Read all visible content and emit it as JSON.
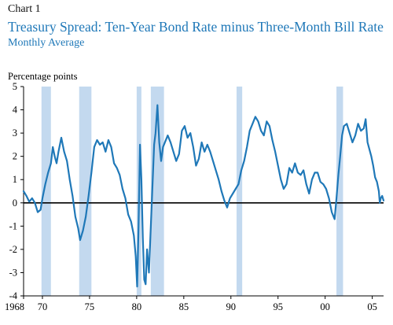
{
  "header": {
    "chart_label": "Chart 1",
    "title": "Treasury Spread: Ten-Year Bond Rate minus Three-Month Bill Rate",
    "subtitle": "Monthly Average"
  },
  "colors": {
    "line": "#1f78b8",
    "recession": "#c3d9ef",
    "title": "#1f78b8"
  },
  "chart_data": {
    "type": "line",
    "title": "Treasury Spread: Ten-Year Bond Rate minus Three-Month Bill Rate",
    "subtitle": "Monthly Average",
    "ylabel": "Percentage points",
    "xlabel": "",
    "xlim": [
      1968.0,
      2006.2
    ],
    "ylim": [
      -4,
      5
    ],
    "y_ticks": [
      5,
      4,
      3,
      2,
      1,
      0,
      -1,
      -2,
      -3,
      -4
    ],
    "x_ticks": [
      {
        "value": 1968,
        "label": "1968"
      },
      {
        "value": 1970,
        "label": "70"
      },
      {
        "value": 1975,
        "label": "75"
      },
      {
        "value": 1980,
        "label": "80"
      },
      {
        "value": 1985,
        "label": "85"
      },
      {
        "value": 1990,
        "label": "90"
      },
      {
        "value": 1995,
        "label": "95"
      },
      {
        "value": 2000,
        "label": "00"
      },
      {
        "value": 2005,
        "label": "05"
      }
    ],
    "zero_line": 0,
    "recessions": [
      [
        1969.9,
        1970.9
      ],
      [
        1973.9,
        1975.2
      ],
      [
        1980.0,
        1980.5
      ],
      [
        1981.5,
        1982.9
      ],
      [
        1990.6,
        1991.2
      ],
      [
        2001.2,
        2001.9
      ]
    ],
    "series": [
      {
        "values": [
          [
            1968.0,
            0.5
          ],
          [
            1968.3,
            0.3
          ],
          [
            1968.6,
            0.05
          ],
          [
            1968.9,
            0.2
          ],
          [
            1969.2,
            0.0
          ],
          [
            1969.5,
            -0.4
          ],
          [
            1969.8,
            -0.3
          ],
          [
            1970.0,
            0.2
          ],
          [
            1970.3,
            0.8
          ],
          [
            1970.6,
            1.3
          ],
          [
            1970.9,
            1.7
          ],
          [
            1971.1,
            2.4
          ],
          [
            1971.3,
            2.0
          ],
          [
            1971.5,
            1.7
          ],
          [
            1971.7,
            2.2
          ],
          [
            1972.0,
            2.8
          ],
          [
            1972.3,
            2.2
          ],
          [
            1972.6,
            1.8
          ],
          [
            1972.9,
            1.0
          ],
          [
            1973.2,
            0.3
          ],
          [
            1973.5,
            -0.6
          ],
          [
            1973.8,
            -1.1
          ],
          [
            1974.0,
            -1.6
          ],
          [
            1974.3,
            -1.2
          ],
          [
            1974.6,
            -0.6
          ],
          [
            1974.9,
            0.3
          ],
          [
            1975.2,
            1.3
          ],
          [
            1975.5,
            2.4
          ],
          [
            1975.8,
            2.7
          ],
          [
            1976.1,
            2.5
          ],
          [
            1976.4,
            2.6
          ],
          [
            1976.7,
            2.2
          ],
          [
            1977.0,
            2.7
          ],
          [
            1977.3,
            2.4
          ],
          [
            1977.6,
            1.7
          ],
          [
            1977.9,
            1.5
          ],
          [
            1978.2,
            1.2
          ],
          [
            1978.5,
            0.6
          ],
          [
            1978.8,
            0.2
          ],
          [
            1979.1,
            -0.5
          ],
          [
            1979.4,
            -0.8
          ],
          [
            1979.7,
            -1.4
          ],
          [
            1979.9,
            -2.3
          ],
          [
            1980.05,
            -3.6
          ],
          [
            1980.2,
            -1.0
          ],
          [
            1980.35,
            2.5
          ],
          [
            1980.5,
            1.0
          ],
          [
            1980.65,
            -1.5
          ],
          [
            1980.8,
            -3.3
          ],
          [
            1980.95,
            -3.5
          ],
          [
            1981.1,
            -2.0
          ],
          [
            1981.3,
            -3.0
          ],
          [
            1981.5,
            -1.0
          ],
          [
            1981.7,
            1.0
          ],
          [
            1981.85,
            2.5
          ],
          [
            1982.0,
            3.0
          ],
          [
            1982.2,
            4.2
          ],
          [
            1982.4,
            2.6
          ],
          [
            1982.6,
            1.8
          ],
          [
            1982.8,
            2.4
          ],
          [
            1983.0,
            2.6
          ],
          [
            1983.3,
            2.9
          ],
          [
            1983.6,
            2.6
          ],
          [
            1983.9,
            2.2
          ],
          [
            1984.2,
            1.8
          ],
          [
            1984.5,
            2.1
          ],
          [
            1984.8,
            3.1
          ],
          [
            1985.1,
            3.3
          ],
          [
            1985.4,
            2.8
          ],
          [
            1985.7,
            3.0
          ],
          [
            1986.0,
            2.4
          ],
          [
            1986.3,
            1.6
          ],
          [
            1986.6,
            1.9
          ],
          [
            1986.9,
            2.6
          ],
          [
            1987.2,
            2.2
          ],
          [
            1987.5,
            2.5
          ],
          [
            1987.8,
            2.2
          ],
          [
            1988.1,
            1.8
          ],
          [
            1988.4,
            1.4
          ],
          [
            1988.7,
            1.0
          ],
          [
            1989.0,
            0.5
          ],
          [
            1989.3,
            0.1
          ],
          [
            1989.6,
            -0.2
          ],
          [
            1989.9,
            0.2
          ],
          [
            1990.2,
            0.4
          ],
          [
            1990.5,
            0.6
          ],
          [
            1990.8,
            0.8
          ],
          [
            1991.1,
            1.4
          ],
          [
            1991.4,
            1.8
          ],
          [
            1991.7,
            2.4
          ],
          [
            1992.0,
            3.1
          ],
          [
            1992.3,
            3.4
          ],
          [
            1992.6,
            3.7
          ],
          [
            1992.9,
            3.5
          ],
          [
            1993.2,
            3.1
          ],
          [
            1993.5,
            2.9
          ],
          [
            1993.8,
            3.5
          ],
          [
            1994.1,
            3.3
          ],
          [
            1994.4,
            2.7
          ],
          [
            1994.7,
            2.2
          ],
          [
            1995.0,
            1.6
          ],
          [
            1995.3,
            1.0
          ],
          [
            1995.6,
            0.6
          ],
          [
            1995.9,
            0.8
          ],
          [
            1996.2,
            1.5
          ],
          [
            1996.5,
            1.3
          ],
          [
            1996.8,
            1.7
          ],
          [
            1997.1,
            1.3
          ],
          [
            1997.4,
            1.2
          ],
          [
            1997.7,
            1.4
          ],
          [
            1998.0,
            0.8
          ],
          [
            1998.3,
            0.4
          ],
          [
            1998.6,
            1.0
          ],
          [
            1998.9,
            1.3
          ],
          [
            1999.2,
            1.3
          ],
          [
            1999.5,
            0.9
          ],
          [
            1999.8,
            0.8
          ],
          [
            2000.1,
            0.6
          ],
          [
            2000.4,
            0.2
          ],
          [
            2000.7,
            -0.4
          ],
          [
            2001.0,
            -0.7
          ],
          [
            2001.2,
            0.2
          ],
          [
            2001.4,
            1.2
          ],
          [
            2001.6,
            2.0
          ],
          [
            2001.8,
            2.9
          ],
          [
            2002.0,
            3.3
          ],
          [
            2002.3,
            3.4
          ],
          [
            2002.6,
            3.0
          ],
          [
            2002.9,
            2.6
          ],
          [
            2003.2,
            2.9
          ],
          [
            2003.5,
            3.4
          ],
          [
            2003.8,
            3.1
          ],
          [
            2004.1,
            3.2
          ],
          [
            2004.3,
            3.6
          ],
          [
            2004.5,
            2.6
          ],
          [
            2004.7,
            2.3
          ],
          [
            2004.9,
            2.0
          ],
          [
            2005.1,
            1.6
          ],
          [
            2005.3,
            1.1
          ],
          [
            2005.5,
            0.9
          ],
          [
            2005.7,
            0.5
          ],
          [
            2005.8,
            0.0
          ],
          [
            2005.9,
            0.2
          ],
          [
            2006.05,
            0.3
          ],
          [
            2006.2,
            0.1
          ]
        ]
      }
    ]
  }
}
